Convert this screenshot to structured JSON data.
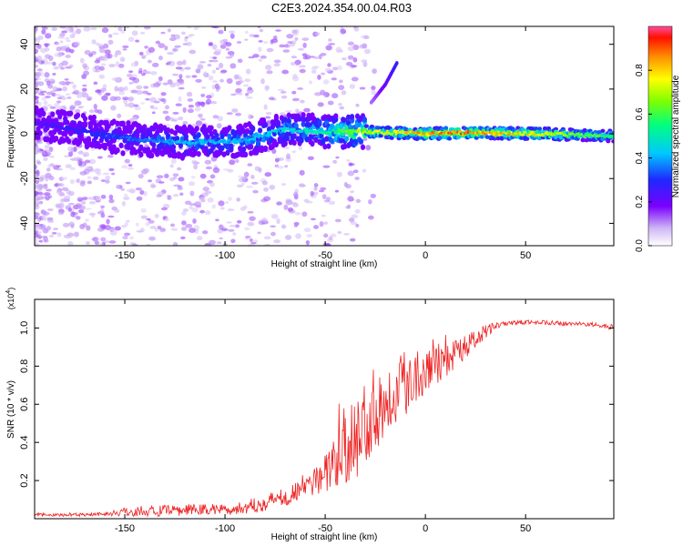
{
  "title": "C2E3.2024.354.00.04.R03",
  "colors": {
    "snr_line": "#ee2222",
    "axis": "#000000",
    "colormap": [
      "#ffffff",
      "#dcc8f5",
      "#7a00ff",
      "#1e28ff",
      "#00c8ff",
      "#00ff80",
      "#80ff00",
      "#ffff00",
      "#ff9000",
      "#ff1000",
      "#ff4fa0"
    ]
  },
  "chart_data": [
    {
      "type": "heatmap",
      "xlabel": "Height of straight line (km)",
      "ylabel": "Frequency (Hz)",
      "xlim": [
        -195,
        94
      ],
      "ylim": [
        -50,
        48
      ],
      "x_ticks": [
        -150,
        -100,
        -50,
        0,
        50
      ],
      "y_ticks": [
        -40,
        -20,
        0,
        20,
        40
      ],
      "colorbar": {
        "label": "Normalized spectral amplitude",
        "range": [
          0,
          1
        ],
        "ticks": [
          "0.0",
          "0.2",
          "0.4",
          "0.6",
          "0.8"
        ]
      },
      "ridge": [
        {
          "x": -195,
          "freq": 5,
          "amp": 0.25
        },
        {
          "x": -150,
          "freq": -2,
          "amp": 0.35
        },
        {
          "x": -120,
          "freq": -4,
          "amp": 0.45
        },
        {
          "x": -90,
          "freq": -3,
          "amp": 0.45
        },
        {
          "x": -70,
          "freq": 2,
          "amp": 0.5
        },
        {
          "x": -50,
          "freq": 1,
          "amp": 0.55
        },
        {
          "x": -30,
          "freq": 1,
          "amp": 0.75
        },
        {
          "x": 0,
          "freq": 0,
          "amp": 0.9
        },
        {
          "x": 20,
          "freq": 0.5,
          "amp": 0.95
        },
        {
          "x": 60,
          "freq": 0,
          "amp": 0.8
        },
        {
          "x": 94,
          "freq": -1,
          "amp": 0.6
        }
      ],
      "side_branch": [
        {
          "x": -27,
          "freq": 14
        },
        {
          "x": -20,
          "freq": 22
        },
        {
          "x": -14,
          "freq": 32
        }
      ]
    },
    {
      "type": "line",
      "xlabel": "Height of straight line (km)",
      "ylabel": "SNR (10 * v/v)",
      "y_multiplier": "(x10",
      "y_multiplier_exp": "4",
      "y_multiplier_close": ")",
      "xlim": [
        -195,
        94
      ],
      "ylim": [
        0,
        1.15
      ],
      "x_ticks": [
        -150,
        -100,
        -50,
        0,
        50
      ],
      "y_ticks": [
        0.2,
        0.4,
        0.6,
        0.8,
        1.0
      ],
      "y_tick_labels": [
        "0.2",
        "0.4",
        "0.6",
        "0.8",
        "1.0"
      ],
      "series": [
        {
          "x": [
            -195,
            -180,
            -160,
            -145,
            -130,
            -110,
            -95,
            -85,
            -75,
            -65,
            -55,
            -45,
            -40,
            -35,
            -30,
            -25,
            -20,
            -15,
            -10,
            -5,
            0,
            5,
            10,
            15,
            20,
            25,
            30,
            35,
            40,
            50,
            60,
            70,
            80,
            90,
            94
          ],
          "values": [
            0.02,
            0.02,
            0.025,
            0.04,
            0.04,
            0.05,
            0.05,
            0.07,
            0.1,
            0.14,
            0.2,
            0.28,
            0.35,
            0.42,
            0.5,
            0.58,
            0.62,
            0.68,
            0.72,
            0.76,
            0.8,
            0.82,
            0.84,
            0.87,
            0.9,
            0.94,
            0.98,
            1.01,
            1.02,
            1.03,
            1.03,
            1.02,
            1.02,
            1.01,
            1.0
          ],
          "noise": [
            0.01,
            0.01,
            0.01,
            0.03,
            0.03,
            0.03,
            0.03,
            0.04,
            0.05,
            0.06,
            0.08,
            0.12,
            0.18,
            0.22,
            0.25,
            0.22,
            0.2,
            0.18,
            0.18,
            0.16,
            0.15,
            0.12,
            0.1,
            0.08,
            0.06,
            0.05,
            0.04,
            0.02,
            0.015,
            0.012,
            0.012,
            0.012,
            0.012,
            0.012,
            0.02
          ]
        }
      ]
    }
  ]
}
